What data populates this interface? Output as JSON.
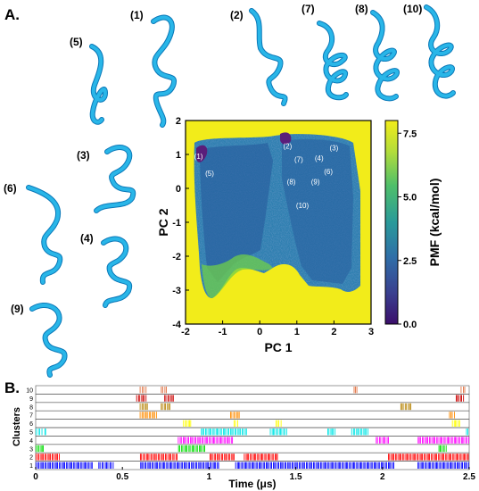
{
  "panels": {
    "a": "A.",
    "b": "B."
  },
  "structures": [
    "(1)",
    "(2)",
    "(3)",
    "(4)",
    "(5)",
    "(6)",
    "(7)",
    "(8)",
    "(9)",
    "(10)"
  ],
  "colors": {
    "ribbon": "#29b6e8",
    "ribbon_dark": "#0a78b8",
    "pmf_high": "#f2ec1a",
    "pmf_mid": "#2f8fb0",
    "pmf_low": "#3e1e70",
    "cluster_colors": [
      "#0000ff",
      "#ff0000",
      "#00dd00",
      "#ff00ff",
      "#00e5e5",
      "#ffff00",
      "#ff8c00",
      "#b8860b",
      "#cc0000",
      "#e07040"
    ]
  },
  "chart_data": [
    {
      "type": "heatmap",
      "title": "",
      "xlabel": "PC 1",
      "ylabel": "PC 2",
      "xlim": [
        -2,
        3
      ],
      "ylim": [
        -4,
        2
      ],
      "xticks": [
        "-2",
        "-1",
        "0",
        "1",
        "2",
        "3"
      ],
      "yticks": [
        "2",
        "1",
        "0",
        "-1",
        "-2",
        "-3",
        "-4"
      ],
      "colorbar": {
        "label": "PMF (kcal/mol)",
        "range": [
          0.0,
          8.0
        ],
        "ticks": [
          "7.5",
          "5.0",
          "2.5",
          "0.0"
        ]
      },
      "cluster_labels": [
        {
          "label": "(1)",
          "x": -1.65,
          "y": 0.95
        },
        {
          "label": "(2)",
          "x": 0.75,
          "y": 1.25
        },
        {
          "label": "(3)",
          "x": 2.0,
          "y": 1.2
        },
        {
          "label": "(4)",
          "x": 1.6,
          "y": 0.9
        },
        {
          "label": "(5)",
          "x": -1.35,
          "y": 0.45
        },
        {
          "label": "(6)",
          "x": 1.85,
          "y": 0.5
        },
        {
          "label": "(7)",
          "x": 1.05,
          "y": 0.85
        },
        {
          "label": "(8)",
          "x": 0.85,
          "y": 0.2
        },
        {
          "label": "(9)",
          "x": 1.5,
          "y": 0.2
        },
        {
          "label": "(10)",
          "x": 1.15,
          "y": -0.5
        }
      ]
    },
    {
      "type": "scatter",
      "title": "",
      "xlabel": "Time (μs)",
      "ylabel": "Clusters",
      "xlim": [
        0,
        2.5
      ],
      "xticks": [
        "0",
        "0.5",
        "1",
        "1.5",
        "2",
        "2.5"
      ],
      "categories": [
        "1",
        "2",
        "3",
        "4",
        "5",
        "6",
        "7",
        "8",
        "9",
        "10"
      ],
      "occupancy": [
        {
          "cluster": "1",
          "intervals": [
            [
              0.0,
              0.33
            ],
            [
              0.36,
              0.45
            ],
            [
              0.6,
              1.06
            ],
            [
              1.15,
              2.07
            ],
            [
              2.2,
              2.5
            ]
          ]
        },
        {
          "cluster": "2",
          "intervals": [
            [
              0.0,
              0.14
            ],
            [
              0.6,
              0.82
            ],
            [
              1.0,
              1.15
            ],
            [
              1.2,
              1.4
            ],
            [
              2.03,
              2.5
            ]
          ]
        },
        {
          "cluster": "3",
          "intervals": [
            [
              0.0,
              0.05
            ],
            [
              0.82,
              0.98
            ],
            [
              2.32,
              2.37
            ]
          ]
        },
        {
          "cluster": "4",
          "intervals": [
            [
              0.82,
              1.14
            ],
            [
              1.96,
              2.04
            ],
            [
              2.2,
              2.5
            ]
          ]
        },
        {
          "cluster": "5",
          "intervals": [
            [
              0.0,
              0.04
            ],
            [
              0.05,
              0.06
            ],
            [
              0.95,
              1.22
            ],
            [
              1.35,
              1.45
            ],
            [
              1.68,
              1.73
            ],
            [
              1.82,
              1.92
            ],
            [
              2.48,
              2.5
            ]
          ]
        },
        {
          "cluster": "6",
          "intervals": [
            [
              0.85,
              0.9
            ],
            [
              1.14,
              1.17
            ],
            [
              1.38,
              1.42
            ],
            [
              2.4,
              2.45
            ]
          ]
        },
        {
          "cluster": "7",
          "intervals": [
            [
              0.6,
              0.7
            ],
            [
              1.12,
              1.18
            ],
            [
              2.38,
              2.42
            ]
          ]
        },
        {
          "cluster": "8",
          "intervals": [
            [
              0.6,
              0.65
            ],
            [
              0.72,
              0.78
            ],
            [
              2.1,
              2.17
            ]
          ]
        },
        {
          "cluster": "9",
          "intervals": [
            [
              0.58,
              0.64
            ],
            [
              0.74,
              0.8
            ],
            [
              2.42,
              2.47
            ]
          ]
        },
        {
          "cluster": "10",
          "intervals": [
            [
              0.6,
              0.64
            ],
            [
              0.72,
              0.76
            ],
            [
              1.83,
              1.86
            ],
            [
              2.45,
              2.48
            ]
          ]
        }
      ]
    }
  ]
}
